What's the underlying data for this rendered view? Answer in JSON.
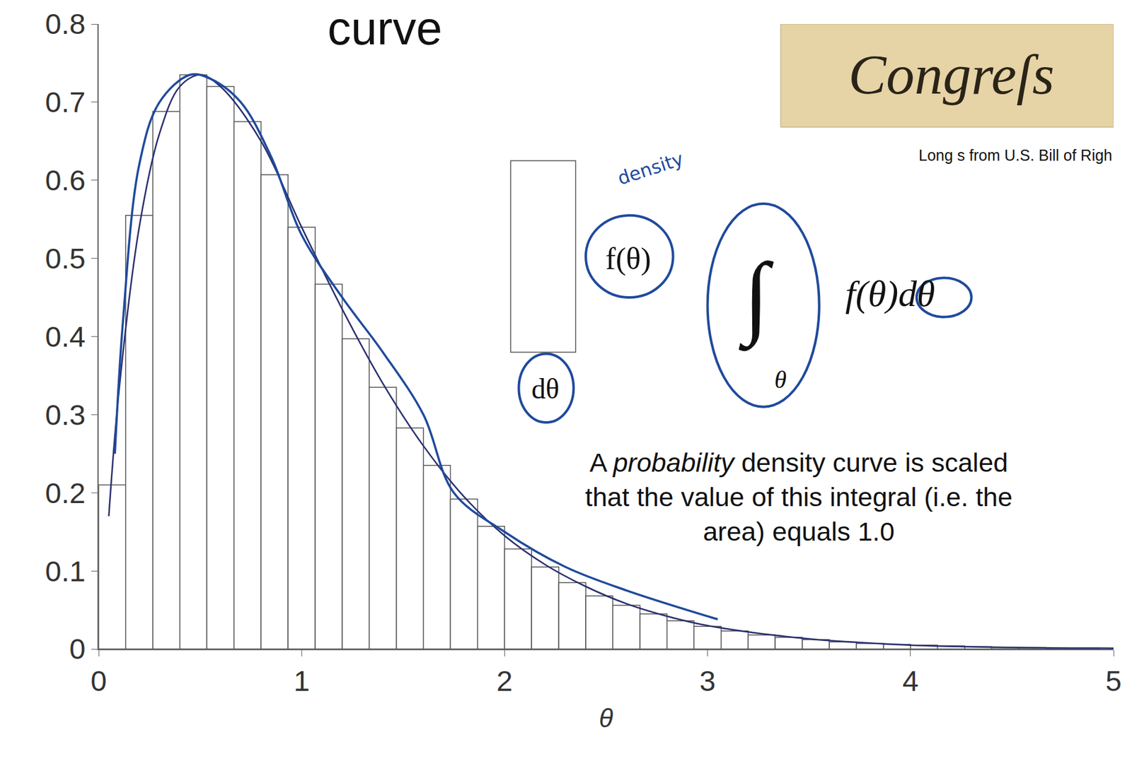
{
  "chart_data": {
    "type": "histogram",
    "title": "curve",
    "x_label": "θ",
    "bins": [
      0,
      0.133,
      0.267,
      0.4,
      0.533,
      0.667,
      0.8,
      0.933,
      1.067,
      1.2,
      1.333,
      1.467,
      1.6,
      1.733,
      1.867,
      2.0,
      2.133,
      2.267,
      2.4,
      2.533,
      2.667,
      2.8,
      2.933,
      3.067,
      3.2,
      3.333,
      3.467,
      3.6,
      3.733,
      3.867,
      4.0,
      4.133,
      4.267,
      4.4,
      4.533,
      4.667,
      4.8,
      4.933
    ],
    "counts": [
      0.21,
      0.555,
      0.688,
      0.735,
      0.72,
      0.675,
      0.607,
      0.54,
      0.467,
      0.397,
      0.335,
      0.283,
      0.235,
      0.192,
      0.157,
      0.128,
      0.105,
      0.085,
      0.068,
      0.056,
      0.045,
      0.036,
      0.029,
      0.023,
      0.018,
      0.015,
      0.012,
      0.009,
      0.007,
      0.006,
      0.005,
      0.004,
      0.003,
      0.002,
      0.002,
      0.001,
      0.001
    ],
    "color": "#ffffff",
    "curves": [
      {
        "color": "#2b2f6e",
        "line_style": "solid",
        "x": [
          0.05,
          0.1,
          0.2,
          0.3,
          0.4,
          0.5,
          0.6,
          0.8,
          1.0,
          1.2,
          1.4,
          1.6,
          1.8,
          2.0,
          2.2,
          2.4,
          2.6,
          2.8,
          3.0,
          3.5,
          4.0,
          4.5,
          5.0
        ],
        "values": [
          0.17,
          0.33,
          0.54,
          0.66,
          0.72,
          0.735,
          0.72,
          0.65,
          0.54,
          0.435,
          0.34,
          0.26,
          0.195,
          0.145,
          0.108,
          0.08,
          0.058,
          0.042,
          0.03,
          0.013,
          0.005,
          0.002,
          0.001
        ]
      },
      {
        "color": "#1f4a9c",
        "line_style": "solid",
        "x": [
          0.08,
          0.12,
          0.2,
          0.3,
          0.45,
          0.55,
          0.7,
          0.85,
          1.0,
          1.2,
          1.4,
          1.6,
          1.75,
          2.0,
          2.3,
          2.6,
          3.05
        ],
        "values": [
          0.25,
          0.42,
          0.62,
          0.7,
          0.735,
          0.73,
          0.7,
          0.63,
          0.53,
          0.45,
          0.38,
          0.3,
          0.2,
          0.15,
          0.105,
          0.075,
          0.038
        ]
      }
    ],
    "xlim": [
      0,
      5
    ],
    "xticks": [
      0,
      1,
      2,
      3,
      4,
      5
    ],
    "ylim": [
      0,
      0.8
    ],
    "yticks": [
      0,
      0.1,
      0.2,
      0.3,
      0.4,
      0.5,
      0.6,
      0.7,
      0.8
    ],
    "grid": false,
    "annotations": {
      "density_note": "density",
      "f": "f(θ)",
      "d": "dθ",
      "integral": "∫",
      "integral_sub": "θ",
      "integrand": "f(θ)dθ",
      "caption": [
        "A probability density curve is scaled",
        "that the value of this integral (i.e. the",
        "area) equals 1.0"
      ],
      "caption_emphasis": "probability",
      "credit": "Long s from U.S. Bill of Righ",
      "image_text": "Congreſs"
    }
  }
}
